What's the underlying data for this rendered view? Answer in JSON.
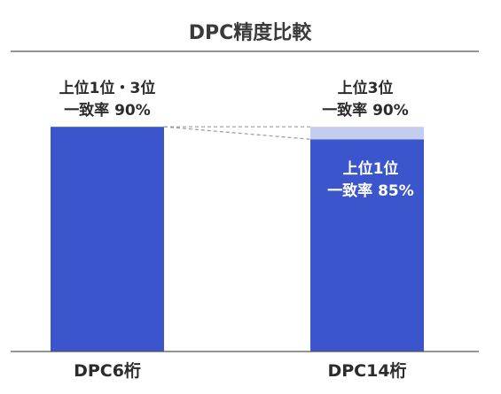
{
  "colors": {
    "bar_main": "#3b56cc",
    "bar_top": "#c5cdee",
    "rule": "#555555",
    "connector": "#9a9a9a"
  },
  "chart_data": {
    "type": "bar",
    "title": "DPC精度比較",
    "categories": [
      "DPC6桁",
      "DPC14桁"
    ],
    "ylim": [
      0,
      100
    ],
    "grid": false,
    "series": [
      {
        "name": "上位1位",
        "values": [
          90,
          85
        ]
      },
      {
        "name": "上位3位",
        "values": [
          0,
          5
        ]
      }
    ],
    "annotations": {
      "dpc6_total_line1": "上位1位・3位",
      "dpc6_total_line2": "一致率 90%",
      "dpc14_top3_line1": "上位3位",
      "dpc14_top3_line2": "一致率 90%",
      "dpc14_top1_line1": "上位1位",
      "dpc14_top1_line2": "一致率 85%"
    }
  }
}
